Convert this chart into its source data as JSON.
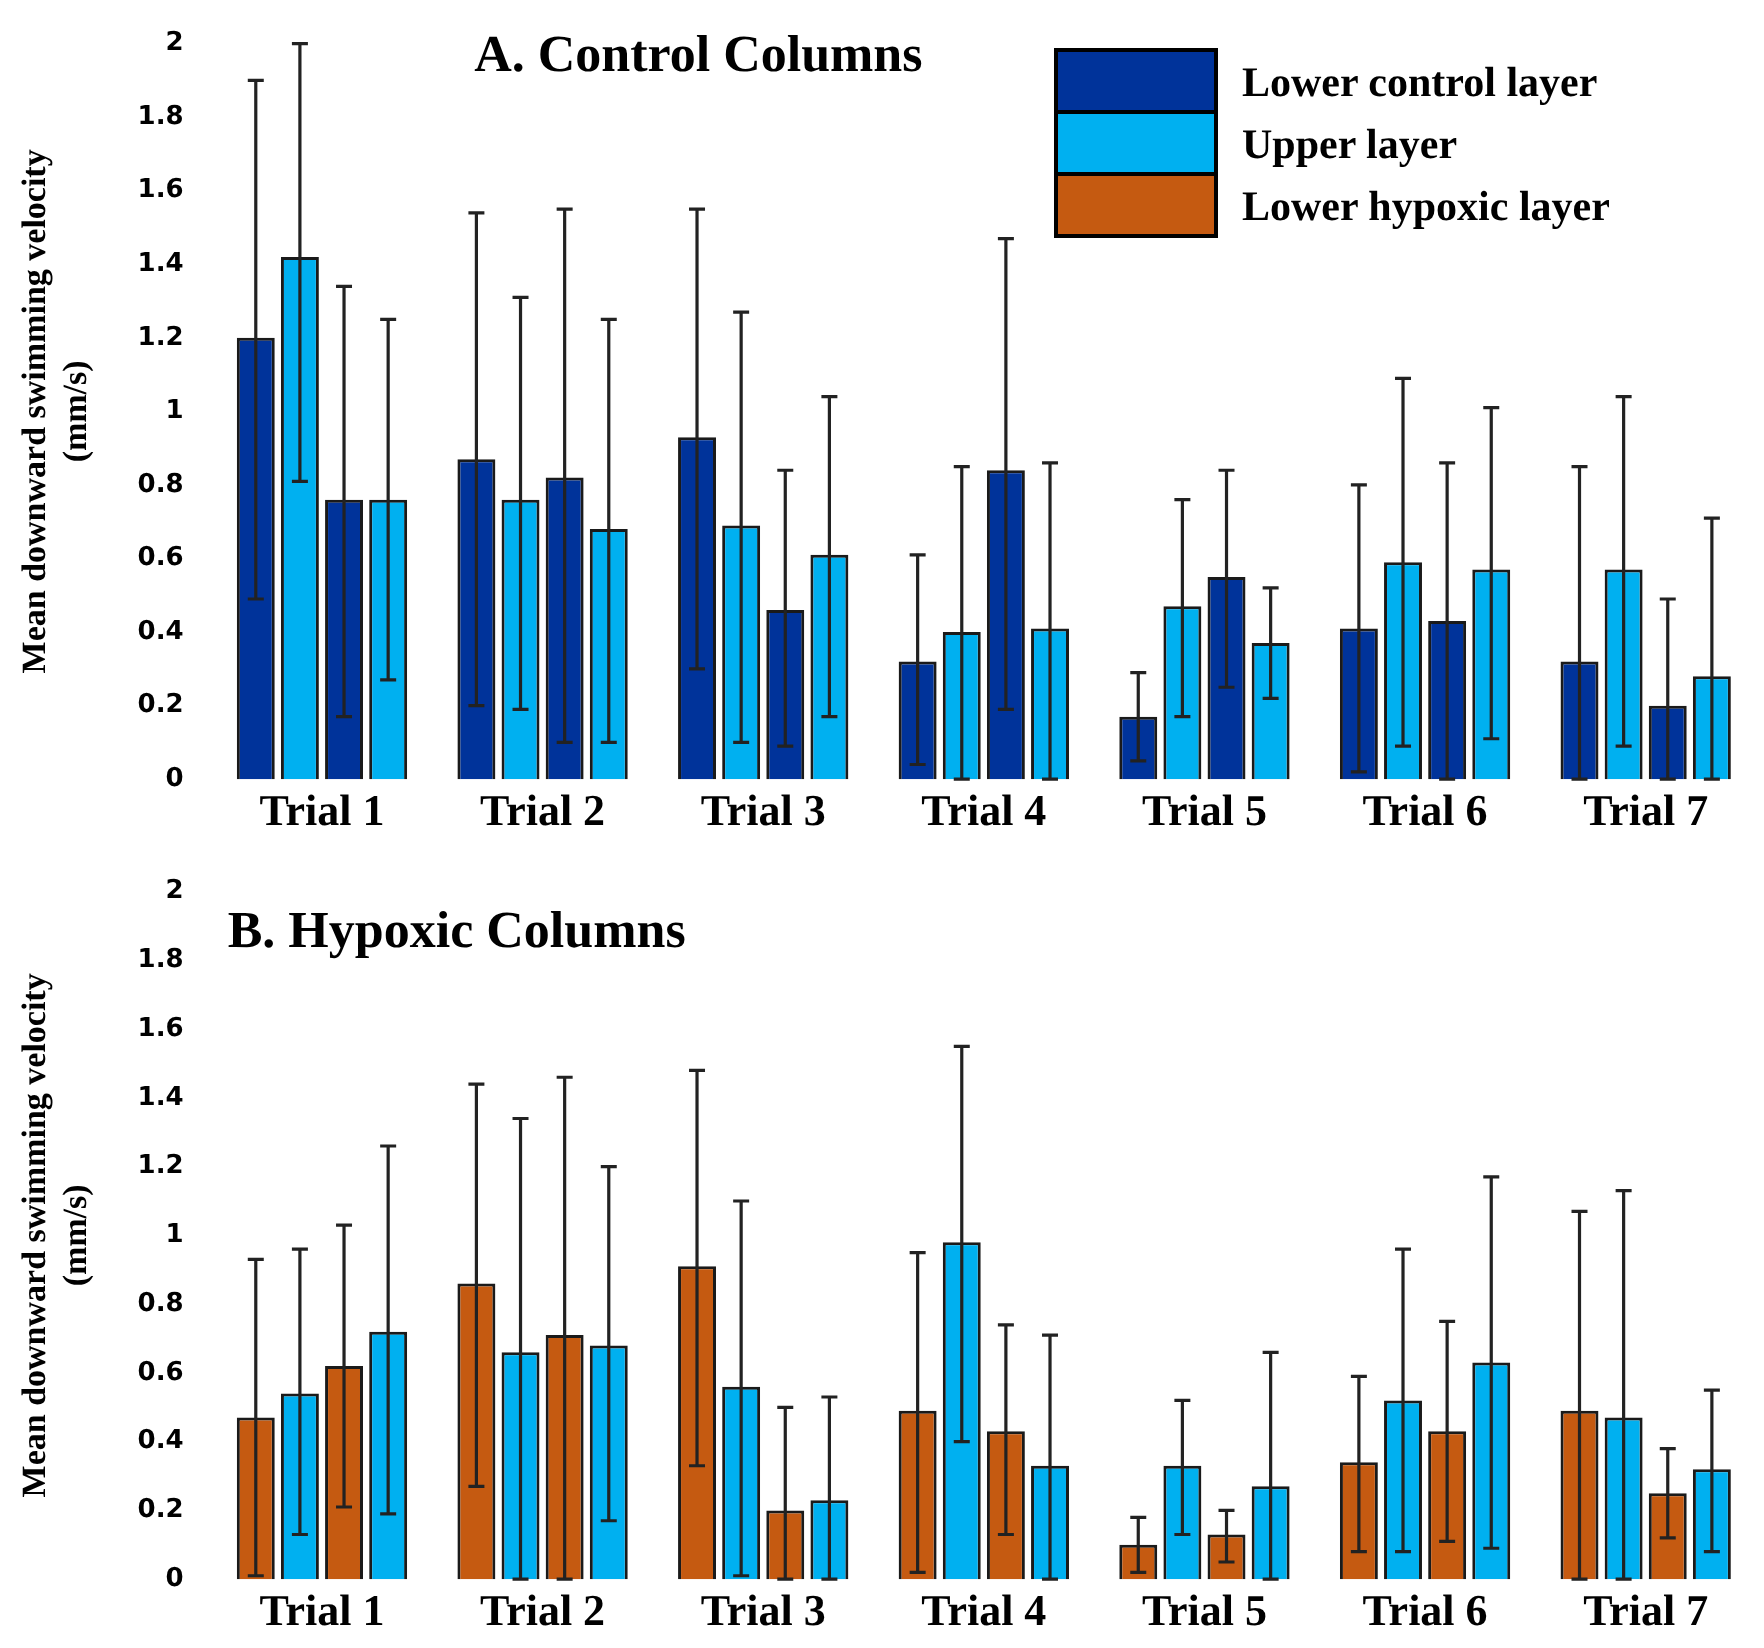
{
  "chart_data": [
    {
      "type": "bar",
      "title": "A. Control Columns",
      "ylabel": "Mean downward swimming velocity\n(mm/s)",
      "categories": [
        "Trial 1",
        "Trial 2",
        "Trial 3",
        "Trial 4",
        "Trial 5",
        "Trial 6",
        "Trial 7"
      ],
      "series": [
        {
          "name": "Lower control layer",
          "color": "#00339a",
          "values": [
            1.2,
            0.87,
            0.93,
            0.32,
            0.17,
            0.41,
            0.32
          ],
          "errors": [
            [
              0.49,
              1.9
            ],
            [
              0.2,
              1.54
            ],
            [
              0.3,
              1.55
            ],
            [
              0.04,
              0.61
            ],
            [
              0.05,
              0.29
            ],
            [
              0.02,
              0.8
            ],
            [
              0,
              0.85
            ]
          ]
        },
        {
          "name": "Upper layer",
          "color": "#00b0f0",
          "values": [
            1.42,
            0.76,
            0.69,
            0.4,
            0.47,
            0.59,
            0.57
          ],
          "errors": [
            [
              0.81,
              2
            ],
            [
              0.19,
              1.31
            ],
            [
              0.1,
              1.27
            ],
            [
              0,
              0.85
            ],
            [
              0.17,
              0.76
            ],
            [
              0.09,
              1.09
            ],
            [
              0.09,
              1.04
            ]
          ]
        },
        {
          "color": "#00339a",
          "values": [
            0.76,
            0.82,
            0.46,
            0.84,
            0.55,
            0.43,
            0.2
          ],
          "errors": [
            [
              0.17,
              1.34
            ],
            [
              0.1,
              1.55
            ],
            [
              0.09,
              0.84
            ],
            [
              0.19,
              1.47
            ],
            [
              0.25,
              0.84
            ],
            [
              0,
              0.86
            ],
            [
              0,
              0.49
            ]
          ]
        },
        {
          "color": "#00b0f0",
          "values": [
            0.76,
            0.68,
            0.61,
            0.41,
            0.37,
            0.57,
            0.28
          ],
          "errors": [
            [
              0.27,
              1.25
            ],
            [
              0.1,
              1.25
            ],
            [
              0.17,
              1.04
            ],
            [
              0,
              0.86
            ],
            [
              0.22,
              0.52
            ],
            [
              0.11,
              1.01
            ],
            [
              0,
              0.71
            ]
          ]
        }
      ],
      "ylim": [
        0,
        2
      ],
      "yticks": [
        0,
        0.2,
        0.4,
        0.6,
        0.8,
        1,
        1.2,
        1.4,
        1.6,
        1.8,
        2
      ],
      "grid": false,
      "legend": "top right"
    },
    {
      "type": "bar",
      "title": "B. Hypoxic Columns",
      "ylabel": "Mean downward swimming velocity\n(mm/s)",
      "categories": [
        "Trial 1",
        "Trial 2",
        "Trial 3",
        "Trial 4",
        "Trial 5",
        "Trial 6",
        "Trial 7"
      ],
      "series": [
        {
          "name": "Lower hypoxic layer",
          "color": "#c55a11",
          "values": [
            0.47,
            0.86,
            0.91,
            0.49,
            0.1,
            0.34,
            0.49
          ],
          "errors": [
            [
              0.01,
              0.93
            ],
            [
              0.27,
              1.44
            ],
            [
              0.33,
              1.48
            ],
            [
              0.02,
              0.95
            ],
            [
              0.02,
              0.18
            ],
            [
              0.08,
              0.59
            ],
            [
              0,
              1.07
            ]
          ]
        },
        {
          "color": "#00b0f0",
          "values": [
            0.54,
            0.66,
            0.56,
            0.98,
            0.33,
            0.52,
            0.47
          ],
          "errors": [
            [
              0.13,
              0.96
            ],
            [
              0,
              1.34
            ],
            [
              0.01,
              1.1
            ],
            [
              0.4,
              1.55
            ],
            [
              0.13,
              0.52
            ],
            [
              0.08,
              0.96
            ],
            [
              0,
              1.13
            ]
          ]
        },
        {
          "color": "#c55a11",
          "values": [
            0.62,
            0.71,
            0.2,
            0.43,
            0.13,
            0.43,
            0.25
          ],
          "errors": [
            [
              0.21,
              1.03
            ],
            [
              0,
              1.46
            ],
            [
              0,
              0.5
            ],
            [
              0.13,
              0.74
            ],
            [
              0.05,
              0.2
            ],
            [
              0.11,
              0.75
            ],
            [
              0.12,
              0.38
            ]
          ]
        },
        {
          "color": "#00b0f0",
          "values": [
            0.72,
            0.68,
            0.23,
            0.33,
            0.27,
            0.63,
            0.32
          ],
          "errors": [
            [
              0.19,
              1.26
            ],
            [
              0.17,
              1.2
            ],
            [
              0,
              0.53
            ],
            [
              0,
              0.71
            ],
            [
              0,
              0.66
            ],
            [
              0.09,
              1.17
            ],
            [
              0.08,
              0.55
            ]
          ]
        }
      ],
      "ylim": [
        0,
        2
      ],
      "yticks": [
        0,
        0.2,
        0.4,
        0.6,
        0.8,
        1,
        1.2,
        1.4,
        1.6,
        1.8,
        2
      ],
      "grid": false
    }
  ]
}
